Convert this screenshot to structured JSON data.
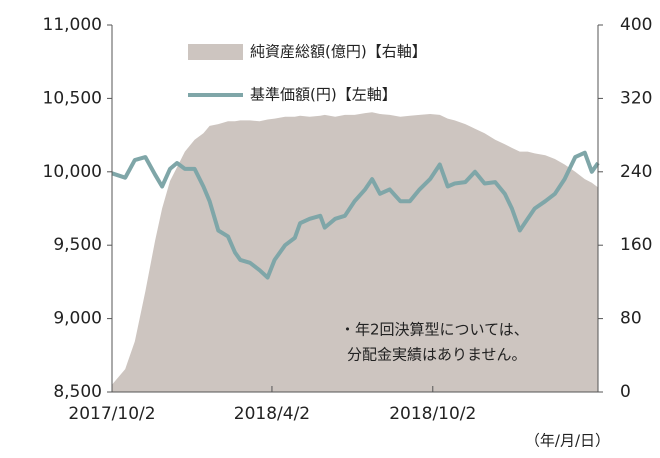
{
  "chart_data": {
    "type": "line",
    "x": [
      "2017/10/2",
      "2017/10/17",
      "2017/10/28",
      "2017/11/9",
      "2017/11/20",
      "2017/11/28",
      "2017/12/7",
      "2017/12/15",
      "2017/12/24",
      "2018/1/4",
      "2018/1/14",
      "2018/1/21",
      "2018/1/31",
      "2018/2/11",
      "2018/2/19",
      "2018/2/25",
      "2018/3/8",
      "2018/3/19",
      "2018/3/28",
      "2018/4/5",
      "2018/4/17",
      "2018/4/28",
      "2018/5/4",
      "2018/5/15",
      "2018/5/27",
      "2018/6/1",
      "2018/6/13",
      "2018/6/24",
      "2018/7/5",
      "2018/7/17",
      "2018/7/25",
      "2018/8/3",
      "2018/8/14",
      "2018/8/26",
      "2018/9/6",
      "2018/9/17",
      "2018/9/29",
      "2018/10/10",
      "2018/10/19",
      "2018/10/27",
      "2018/11/8",
      "2018/11/19",
      "2018/11/30",
      "2018/12/12",
      "2018/12/23",
      "2018/12/31",
      "2019/1/9",
      "2019/1/18",
      "2019/1/26",
      "2019/2/7",
      "2019/2/18",
      "2019/3/1",
      "2019/3/13",
      "2019/3/24",
      "2019/4/1",
      "2019/4/8"
    ],
    "series": [
      {
        "name": "純資産総額(億円)【右軸】",
        "color": "#cdc5c0",
        "fill": true,
        "axis": "y2",
        "values": [
          8,
          25,
          55,
          110,
          165,
          200,
          230,
          245,
          262,
          275,
          282,
          290,
          292,
          295,
          295,
          296,
          296,
          295,
          297,
          298,
          300,
          300,
          301,
          300,
          301,
          302,
          300,
          302,
          302,
          304,
          305,
          303,
          302,
          300,
          301,
          302,
          303,
          302,
          298,
          296,
          292,
          287,
          282,
          275,
          270,
          266,
          262,
          262,
          260,
          258,
          254,
          248,
          240,
          232,
          228,
          223
        ]
      },
      {
        "name": "基準価額(円)【左軸】",
        "color": "#7fa6a8",
        "values": [
          9990,
          9960,
          10080,
          10100,
          9980,
          9900,
          10020,
          10060,
          10020,
          10020,
          9900,
          9800,
          9600,
          9560,
          9450,
          9400,
          9380,
          9330,
          9280,
          9400,
          9500,
          9550,
          9650,
          9680,
          9700,
          9620,
          9680,
          9700,
          9800,
          9880,
          9950,
          9850,
          9880,
          9800,
          9800,
          9880,
          9950,
          10050,
          9900,
          9920,
          9930,
          10000,
          9920,
          9930,
          9850,
          9750,
          9600,
          9680,
          9750,
          9800,
          9850,
          9950,
          10100,
          10130,
          10000,
          10060
        ]
      }
    ],
    "xlim": [
      "2017/10/2",
      "2019/4/8"
    ],
    "xticks": [
      "2017/10/2",
      "2018/4/2",
      "2018/10/2"
    ],
    "xlabel": "（年/月/日）",
    "ylim": [
      8500,
      11000
    ],
    "yticks": [
      {
        "value": 8500,
        "label": "8,500"
      },
      {
        "value": 9000,
        "label": "9,000"
      },
      {
        "value": 9500,
        "label": "9,500"
      },
      {
        "value": 10000,
        "label": "10,000"
      },
      {
        "value": 10500,
        "label": "10,500"
      },
      {
        "value": 11000,
        "label": "11,000"
      }
    ],
    "y2lim": [
      0,
      400
    ],
    "y2ticks": [
      0,
      80,
      160,
      240,
      320,
      400
    ],
    "annotation": [
      "・年2回決算型については、",
      "分配金実績はありません。"
    ]
  }
}
